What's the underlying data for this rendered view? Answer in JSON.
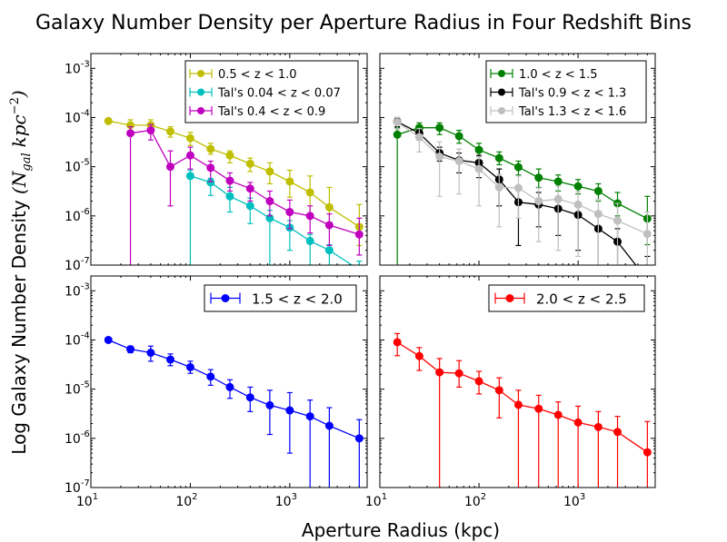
{
  "chart_data": {
    "type": "line",
    "title": "Galaxy Number Density per Aperture Radius in Four Redshift Bins",
    "xlabel": "Aperture Radius (kpc)",
    "ylabel": "Log Galaxy Number Density (N_gal kpc^-2)",
    "ylabel_main": "Log Galaxy Number Density ",
    "ylabel_n": "N",
    "ylabel_gal": "gal",
    "ylabel_kpc": "kpc",
    "ylabel_exp": "−2",
    "xscale": "log",
    "yscale": "log",
    "xlim": [
      10,
      6000
    ],
    "ylim": [
      1e-07,
      0.002
    ],
    "x_ticks": [
      "10",
      "10",
      "10"
    ],
    "x_tick_exps": [
      "1",
      "2",
      "3"
    ],
    "y_ticks": [
      "10",
      "10",
      "10",
      "10",
      "10"
    ],
    "y_tick_exps": [
      "-7",
      "-6",
      "-5",
      "-4",
      "-3"
    ],
    "panels": [
      {
        "legend_position": "top-right",
        "series": [
          {
            "name": "0.5 < z < 1.0",
            "color": "#bfbf00",
            "x": [
              15,
              25,
              40,
              63,
              100,
              160,
              250,
              400,
              630,
              1000,
              1600,
              2500,
              5000
            ],
            "y": [
              8.5e-05,
              7e-05,
              7e-05,
              5.2e-05,
              3.8e-05,
              2.3e-05,
              1.7e-05,
              1.15e-05,
              8e-06,
              5e-06,
              3e-06,
              1.5e-06,
              6e-07
            ],
            "yerr_low": [
              8.5e-05,
              5.3e-05,
              5.5e-05,
              4e-05,
              2.7e-05,
              1.8e-05,
              1.2e-05,
              8e-06,
              4.5e-06,
              2.4e-06,
              1e-06,
              6e-07,
              2.5e-07
            ],
            "yerr_high": [
              8.5e-05,
              9e-05,
              9e-05,
              6.5e-05,
              5e-05,
              3e-05,
              2.1e-05,
              1.5e-05,
              1.2e-05,
              8.5e-06,
              6.5e-06,
              3.8e-06,
              1.7e-06
            ]
          },
          {
            "name": "Tal's 0.04 < z < 0.07",
            "color": "#00bfbf",
            "x": [
              100,
              160,
              250,
              400,
              630,
              1000,
              1600,
              2500,
              5000
            ],
            "y": [
              6.5e-06,
              4.8e-06,
              2.5e-06,
              1.6e-06,
              9e-07,
              5.8e-07,
              3.1e-07,
              2e-07,
              8e-08
            ],
            "yerr_low": [
              5e-08,
              2.6e-06,
              1.2e-06,
              7e-07,
              5e-08,
              2e-07,
              1e-07,
              5e-08,
              5e-08
            ],
            "yerr_high": [
              8.5e-06,
              5.8e-06,
              3.8e-06,
              2.3e-06,
              1.3e-06,
              8e-07,
              4.2e-07,
              2.6e-07,
              1.2e-07
            ]
          },
          {
            "name": "Tal's 0.4 < z < 0.9",
            "color": "#bf00bf",
            "x": [
              25,
              40,
              63,
              100,
              160,
              250,
              400,
              630,
              1000,
              1600,
              2500,
              5000
            ],
            "y": [
              4.8e-05,
              5.5e-05,
              1e-05,
              1.7e-05,
              9.5e-06,
              5.2e-06,
              3.6e-06,
              2e-06,
              1.2e-06,
              1e-06,
              6.5e-07,
              4.2e-07
            ],
            "yerr_low": [
              5e-08,
              3.5e-05,
              1.6e-06,
              9e-06,
              5e-06,
              3.2e-06,
              2e-06,
              1e-06,
              5.5e-07,
              4.5e-07,
              2.5e-07,
              1.6e-07
            ],
            "yerr_high": [
              6.5e-05,
              7.2e-05,
              2.1e-05,
              2.5e-05,
              1.3e-05,
              7.5e-06,
              4.8e-06,
              3.2e-06,
              2.1e-06,
              1.6e-06,
              1.1e-06,
              9e-07
            ]
          }
        ]
      },
      {
        "legend_position": "top-right",
        "series": [
          {
            "name": "1.0 < z < 1.5",
            "color": "#008000",
            "x": [
              15,
              25,
              40,
              63,
              100,
              160,
              250,
              400,
              630,
              1000,
              1600,
              2500,
              5000
            ],
            "y": [
              4.5e-05,
              6.2e-05,
              6.2e-05,
              4.2e-05,
              2.2e-05,
              1.5e-05,
              9.8e-06,
              6e-06,
              5e-06,
              4e-06,
              3.2e-06,
              1.8e-06,
              8.8e-07
            ],
            "yerr_low": [
              5e-08,
              4.5e-05,
              4.5e-05,
              3e-05,
              1.6e-05,
              1.1e-05,
              6.8e-06,
              3.8e-06,
              3.2e-06,
              2.8e-06,
              2e-06,
              1e-06,
              2.6e-07
            ],
            "yerr_high": [
              6.2e-05,
              7.8e-05,
              7.8e-05,
              5.5e-05,
              3e-05,
              2e-05,
              1.3e-05,
              9e-06,
              6.8e-06,
              5.5e-06,
              4.5e-06,
              3e-06,
              2.5e-06
            ]
          },
          {
            "name": "Tal's 0.9 < z < 1.3",
            "color": "#000000",
            "x": [
              15,
              25,
              40,
              63,
              100,
              160,
              250,
              400,
              630,
              1000,
              1600,
              2500,
              5000
            ],
            "y": [
              8.2e-05,
              4.8e-05,
              1.9e-05,
              1.35e-05,
              1.2e-05,
              5.5e-06,
              1.9e-06,
              1.7e-06,
              1.4e-06,
              1.05e-06,
              5.5e-07,
              3e-07,
              5e-08
            ],
            "yerr_low": [
              6.5e-05,
              3.5e-05,
              1.3e-05,
              7.5e-06,
              6e-06,
              1.6e-06,
              2.5e-07,
              6e-07,
              4e-07,
              2e-07,
              5e-08,
              5e-08,
              5e-08
            ],
            "yerr_high": [
              0.0001,
              6e-05,
              2.5e-05,
              1.9e-05,
              1.7e-05,
              9e-06,
              3.8e-06,
              3e-06,
              2.3e-06,
              1.9e-06,
              1.05e-06,
              5.5e-07,
              1.5e-07
            ]
          },
          {
            "name": "Tal's 1.3 < z < 1.6",
            "color": "#bfbfbf",
            "x": [
              15,
              25,
              40,
              63,
              100,
              160,
              250,
              400,
              630,
              1000,
              1600,
              2500,
              5000
            ],
            "y": [
              8e-05,
              4e-05,
              1.6e-05,
              1.3e-05,
              9e-06,
              3.8e-06,
              3.7e-06,
              2e-06,
              2.2e-06,
              1.7e-06,
              1.1e-06,
              8e-07,
              4.3e-07
            ],
            "yerr_low": [
              5.8e-05,
              2e-05,
              2.5e-06,
              2.8e-06,
              1.6e-06,
              6e-07,
              9e-07,
              3e-07,
              2e-07,
              1.5e-07,
              5e-08,
              5e-08,
              5e-08
            ],
            "yerr_high": [
              0.0001,
              6e-05,
              3.2e-05,
              2.3e-05,
              1.6e-05,
              7e-06,
              6.5e-06,
              3.7e-06,
              4e-06,
              3.1e-06,
              2.2e-06,
              1.8e-06,
              1.2e-06
            ]
          }
        ]
      },
      {
        "legend_position": "top-right",
        "series": [
          {
            "name": "1.5 < z < 2.0",
            "color": "#0000ff",
            "x": [
              15,
              25,
              40,
              63,
              100,
              160,
              250,
              400,
              630,
              1000,
              1600,
              2500,
              5000
            ],
            "y": [
              0.0001,
              6.5e-05,
              5.5e-05,
              4e-05,
              2.8e-05,
              1.8e-05,
              1.1e-05,
              6.8e-06,
              4.7e-06,
              3.7e-06,
              2.8e-06,
              1.8e-06,
              1e-06
            ],
            "yerr_low": [
              0.0001,
              5.5e-05,
              3.7e-05,
              3e-05,
              2.1e-05,
              1.2e-05,
              6.5e-06,
              3.5e-06,
              1.2e-06,
              5e-07,
              5e-08,
              5e-08,
              5e-08
            ],
            "yerr_high": [
              0.0001,
              7.5e-05,
              7.5e-05,
              5.2e-05,
              3.7e-05,
              2.5e-05,
              1.55e-05,
              1.1e-05,
              9.5e-06,
              8.5e-06,
              6e-06,
              4.2e-06,
              2.4e-06
            ]
          }
        ]
      },
      {
        "legend_position": "top-right",
        "series": [
          {
            "name": "2.0 < z < 2.5",
            "color": "#ff0000",
            "x": [
              15,
              25,
              40,
              63,
              100,
              160,
              250,
              400,
              630,
              1000,
              1600,
              2500,
              5000
            ],
            "y": [
              9e-05,
              4.7e-05,
              2.2e-05,
              2.1e-05,
              1.45e-05,
              9.5e-06,
              4.8e-06,
              4e-06,
              3e-06,
              2.1e-06,
              1.7e-06,
              1.35e-06,
              5.2e-07
            ],
            "yerr_low": [
              4.8e-05,
              2.4e-05,
              5e-08,
              1.1e-05,
              8e-06,
              2.6e-06,
              5e-08,
              5e-08,
              5e-08,
              5e-08,
              5e-08,
              5e-08,
              5e-08
            ],
            "yerr_high": [
              0.000135,
              7e-05,
              4.2e-05,
              3.8e-05,
              2.3e-05,
              1.7e-05,
              9.5e-06,
              7.5e-06,
              5.5e-06,
              4.5e-06,
              3.5e-06,
              2.8e-06,
              2.2e-06
            ]
          }
        ]
      }
    ]
  }
}
